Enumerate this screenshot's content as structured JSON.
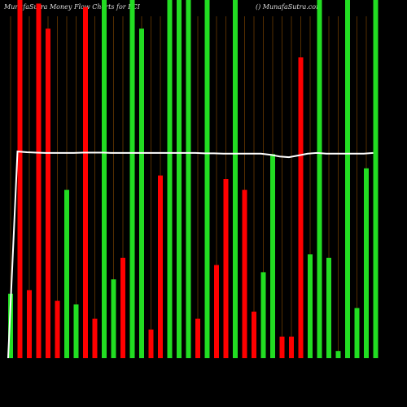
{
  "chart_data": {
    "type": "bar",
    "title": "MunafaSutra  Money Flow  Charts for FCI",
    "subtitle": "() MunafaSutra.com",
    "categories": [
      null,
      null,
      null,
      null,
      null,
      null,
      null,
      null,
      null,
      null,
      null,
      null,
      null,
      null,
      null,
      null,
      null,
      null,
      null,
      null,
      null,
      null,
      null,
      null,
      null,
      null,
      null,
      null,
      null,
      null,
      null,
      null,
      null,
      null,
      null,
      null,
      null,
      null,
      null,
      null
    ],
    "values": [
      18,
      100,
      19,
      99,
      92,
      16,
      47,
      15,
      98,
      11,
      100,
      22,
      28,
      100,
      92,
      8,
      51,
      100,
      100,
      100,
      11,
      100,
      26,
      50,
      100,
      47,
      13,
      24,
      57,
      6,
      6,
      84,
      29,
      100,
      28,
      2,
      100,
      14,
      53,
      100
    ],
    "colors": [
      "#22dd22",
      "#ff0000",
      "#ff0000",
      "#ff0000",
      "#ff0000",
      "#ff0000",
      "#22dd22",
      "#22dd22",
      "#ff0000",
      "#ff0000",
      "#22dd22",
      "#22dd22",
      "#ff0000",
      "#22dd22",
      "#22dd22",
      "#ff0000",
      "#ff0000",
      "#22dd22",
      "#22dd22",
      "#22dd22",
      "#ff0000",
      "#22dd22",
      "#ff0000",
      "#ff0000",
      "#22dd22",
      "#ff0000",
      "#ff0000",
      "#22dd22",
      "#22dd22",
      "#ff0000",
      "#ff0000",
      "#ff0000",
      "#22dd22",
      "#22dd22",
      "#22dd22",
      "#22dd22",
      "#22dd22",
      "#22dd22",
      "#22dd22",
      "#22dd22"
    ],
    "line": {
      "color": "#ffffff",
      "values": [
        0,
        57.7,
        57.5,
        57.4,
        57.3,
        57.3,
        57.3,
        57.3,
        57.4,
        57.4,
        57.4,
        57.3,
        57.3,
        57.3,
        57.3,
        57.3,
        57.3,
        57.3,
        57.3,
        57.3,
        57.3,
        57.2,
        57.2,
        57.1,
        57.1,
        57.1,
        57.1,
        57.1,
        56.8,
        56.3,
        56.1,
        56.6,
        57.1,
        57.3,
        57.1,
        57.1,
        57.1,
        57.1,
        57.1,
        57.3
      ]
    },
    "ylim": [
      0,
      100
    ],
    "grid_color": "#6b3a00"
  }
}
